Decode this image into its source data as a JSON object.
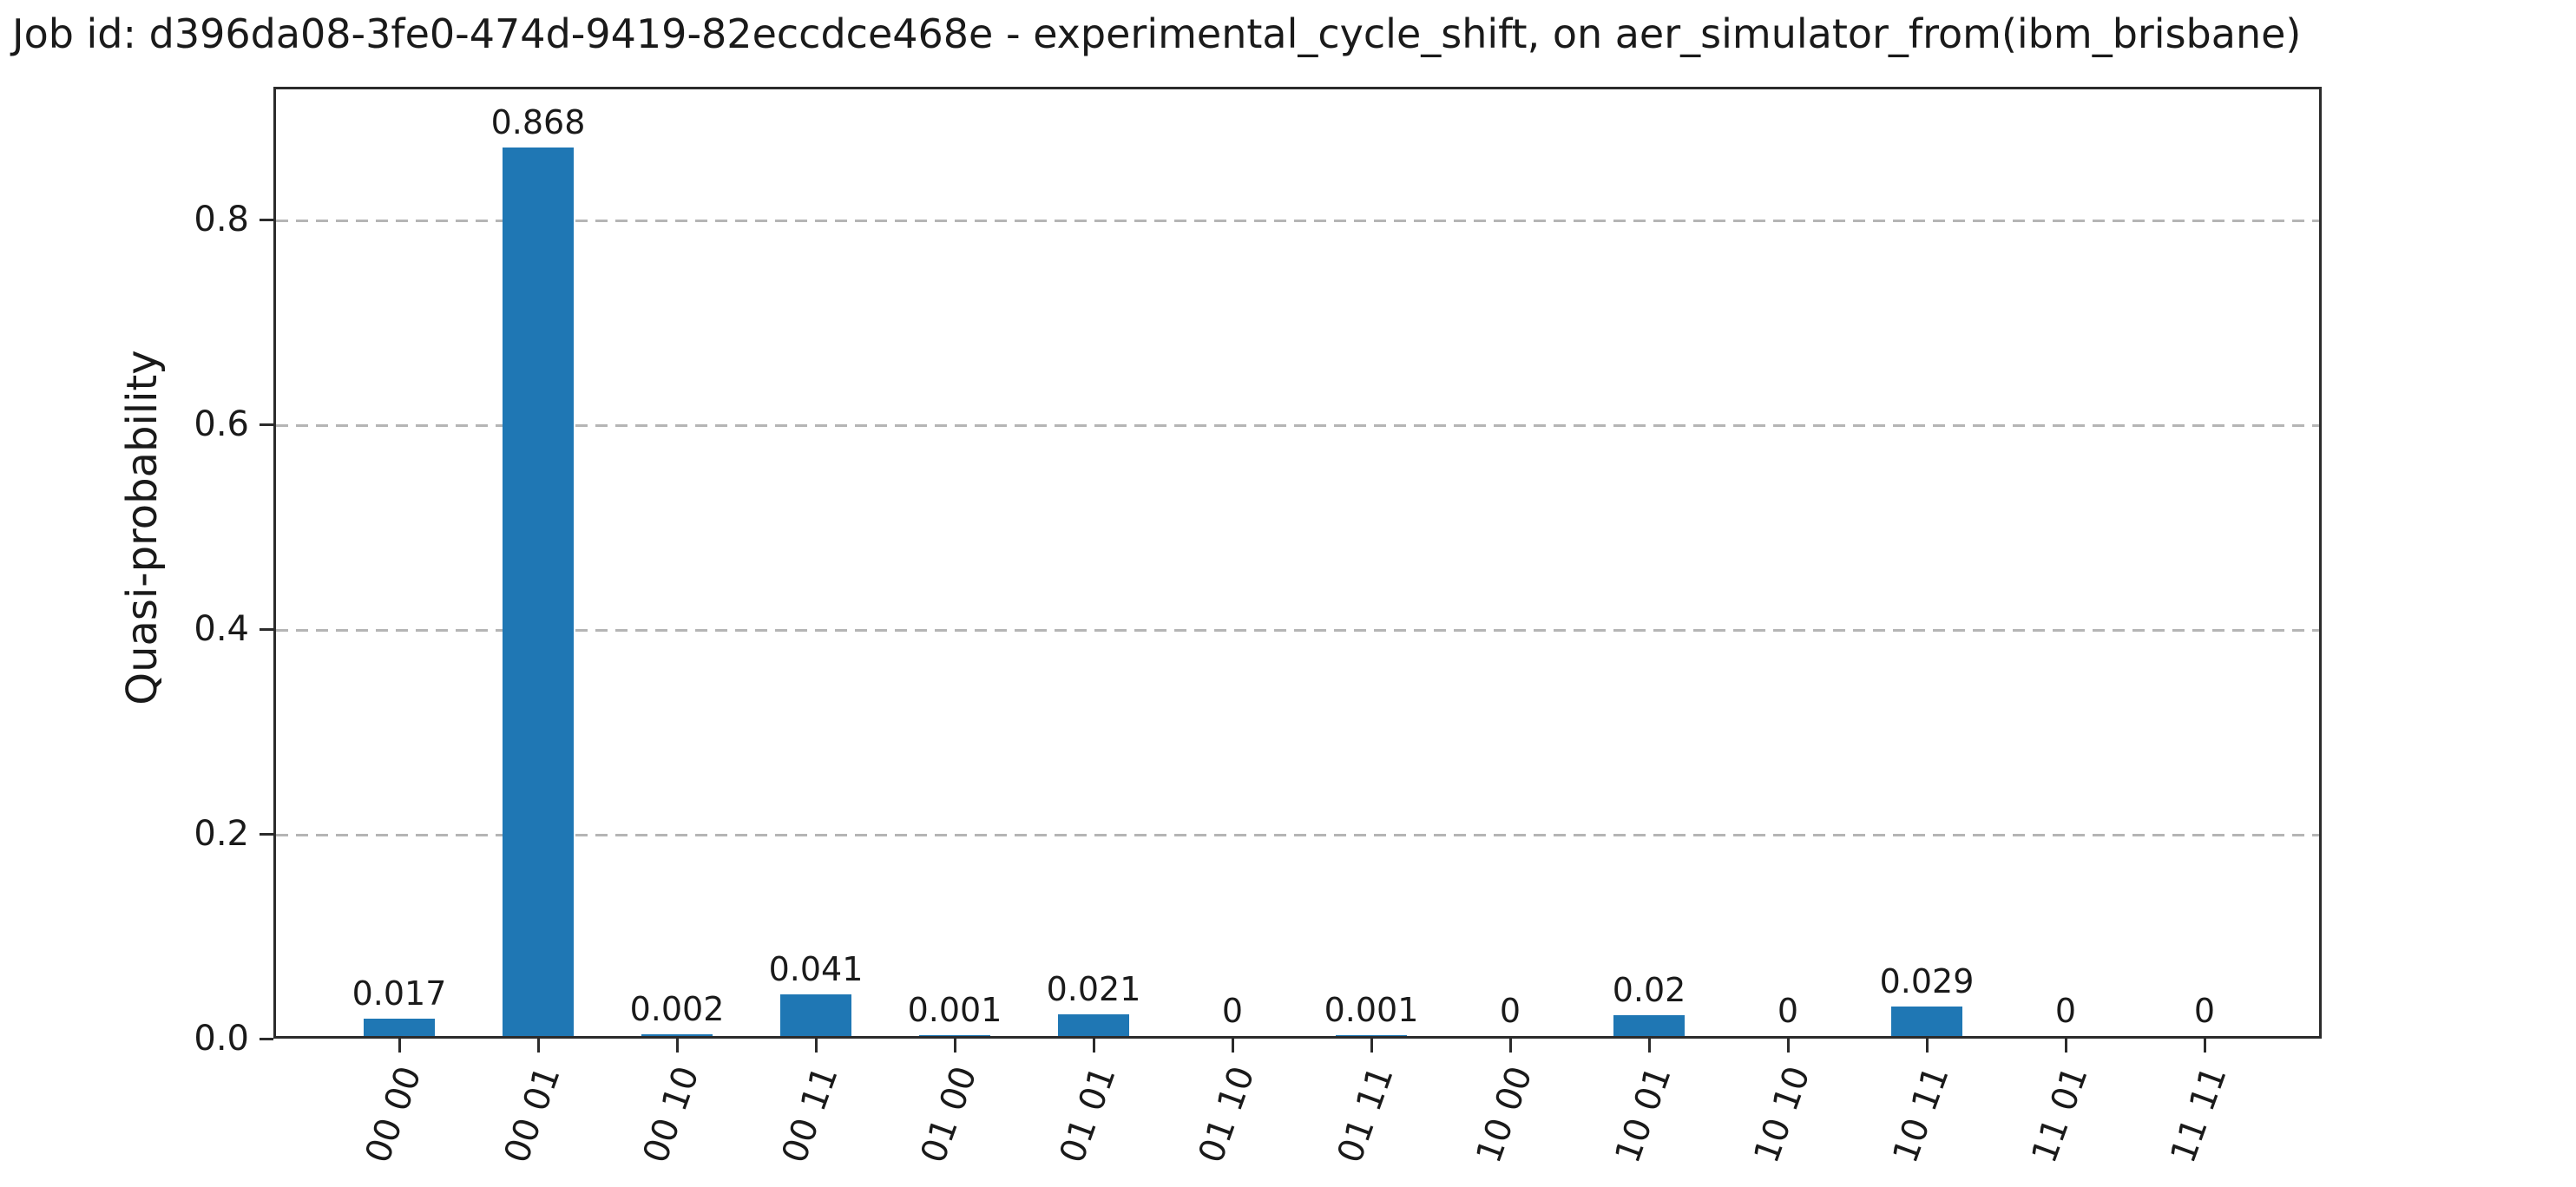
{
  "chart_data": {
    "type": "bar",
    "title": "Job id: d396da08-3fe0-474d-9419-82eccdce468e - experimental_cycle_shift, on aer_simulator_from(ibm_brisbane)",
    "xlabel": "",
    "ylabel": "Quasi-probability",
    "categories": [
      "00 00",
      "00 01",
      "00 10",
      "00 11",
      "01 00",
      "01 01",
      "01 10",
      "01 11",
      "10 00",
      "10 01",
      "10 10",
      "10 11",
      "11 01",
      "11 11"
    ],
    "values": [
      0.017,
      0.868,
      0.002,
      0.041,
      0.001,
      0.021,
      0,
      0.001,
      0,
      0.02,
      0,
      0.029,
      0,
      0
    ],
    "bar_value_labels": [
      "0.017",
      "0.868",
      "0.002",
      "0.041",
      "0.001",
      "0.021",
      "0",
      "0.001",
      "0",
      "0.02",
      "0",
      "0.029",
      "0",
      "0"
    ],
    "ytick_labels": [
      "0.0",
      "0.2",
      "0.4",
      "0.6",
      "0.8"
    ],
    "ytick_values": [
      0.0,
      0.2,
      0.4,
      0.6,
      0.8
    ],
    "ylim": [
      0,
      0.93
    ],
    "grid": "horizontal-dashed",
    "legend": "none",
    "xtick_rotation_deg": 70,
    "bar_color": "#1f77b4",
    "grid_color": "#b5b5b5",
    "axis_color": "#2b2b2b",
    "text_color": "#1a1a1a"
  }
}
